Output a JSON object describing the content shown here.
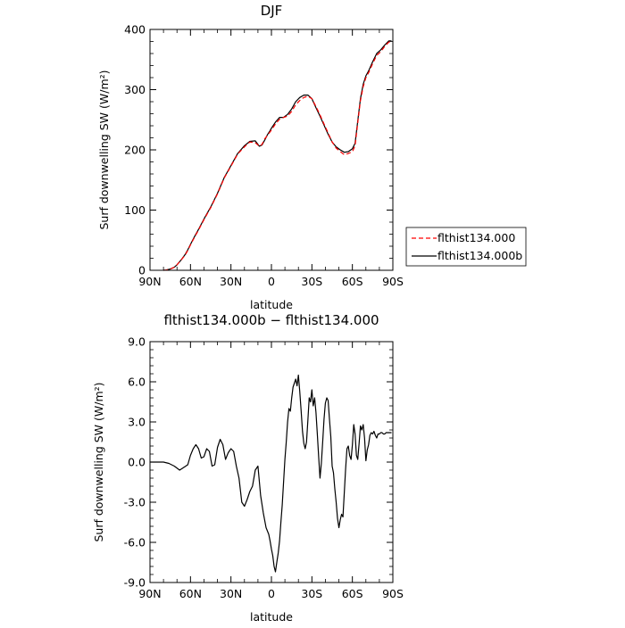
{
  "chart_data": [
    {
      "type": "line",
      "title": "DJF",
      "xlabel": "latitude",
      "ylabel": "Surf downwelling SW (W/m²)",
      "xlim": [
        90,
        -90
      ],
      "ylim": [
        0,
        400
      ],
      "x_tick_values": [
        90,
        60,
        30,
        0,
        -30,
        -60,
        -90
      ],
      "x_tick_labels": [
        "90N",
        "60N",
        "30N",
        "0",
        "30S",
        "60S",
        "90S"
      ],
      "y_tick_values": [
        0,
        100,
        200,
        300,
        400
      ],
      "y_tick_labels": [
        "0",
        "100",
        "200",
        "300",
        "400"
      ],
      "legend_position": "right",
      "series": [
        {
          "name": "flthist134.000",
          "color": "#ff0000",
          "dash": "dashed",
          "x": [
            80,
            78,
            75,
            72,
            70,
            67,
            64,
            62,
            60,
            57,
            54,
            50,
            45,
            40,
            35,
            30,
            25,
            20,
            16,
            12,
            9,
            7,
            5,
            3,
            1,
            0,
            -3,
            -6,
            -9,
            -12,
            -15,
            -18,
            -21,
            -24,
            -27,
            -30,
            -33,
            -36,
            -39,
            -42,
            -45,
            -48,
            -51,
            -54,
            -57,
            -60,
            -62,
            -64,
            -66,
            -68,
            -70,
            -72,
            -75,
            -78,
            -81,
            -84,
            -87,
            -89
          ],
          "y": [
            0,
            0.5,
            2,
            5,
            9,
            17,
            25,
            33,
            42,
            55,
            67,
            84,
            104,
            127,
            153,
            173,
            193,
            205,
            213,
            212,
            206,
            209,
            218,
            224,
            230,
            233,
            243,
            251,
            254,
            256,
            264,
            275,
            282,
            287,
            289,
            285,
            272,
            258,
            243,
            228,
            213,
            203,
            197,
            192,
            194,
            197,
            207,
            245,
            282,
            305,
            320,
            328,
            343,
            357,
            363,
            372,
            379,
            380
          ]
        },
        {
          "name": "flthist134.000b",
          "color": "#000000",
          "dash": "solid",
          "x": [
            80,
            78,
            75,
            72,
            70,
            67,
            64,
            62,
            60,
            57,
            54,
            50,
            45,
            40,
            35,
            30,
            25,
            20,
            16,
            12,
            9,
            7,
            5,
            3,
            1,
            0,
            -3,
            -6,
            -9,
            -12,
            -15,
            -18,
            -21,
            -24,
            -27,
            -30,
            -33,
            -36,
            -39,
            -42,
            -45,
            -48,
            -51,
            -54,
            -57,
            -60,
            -62,
            -64,
            -66,
            -68,
            -70,
            -72,
            -75,
            -78,
            -81,
            -84,
            -87,
            -89
          ],
          "y": [
            0,
            0.5,
            2,
            5,
            9,
            17,
            26,
            34,
            43,
            56,
            68,
            85,
            105,
            128,
            154,
            174,
            194,
            207,
            214,
            215,
            206,
            208,
            216,
            225,
            232,
            236,
            246,
            254,
            254,
            259,
            268,
            280,
            287,
            291,
            291,
            285,
            270,
            256,
            241,
            226,
            213,
            205,
            200,
            196,
            197,
            202,
            211,
            248,
            285,
            309,
            323,
            331,
            346,
            360,
            366,
            374,
            381,
            381
          ]
        }
      ]
    },
    {
      "type": "line",
      "title": "flthist134.000b − flthist134.000",
      "xlabel": "latitude",
      "ylabel": "Surf downwelling SW (W/m²)",
      "xlim": [
        90,
        -90
      ],
      "ylim": [
        -9,
        9
      ],
      "x_tick_values": [
        90,
        60,
        30,
        0,
        -30,
        -60,
        -90
      ],
      "x_tick_labels": [
        "90N",
        "60N",
        "30N",
        "0",
        "30S",
        "60S",
        "90S"
      ],
      "y_tick_values": [
        9,
        6,
        3,
        0,
        -3,
        -6,
        -9
      ],
      "y_tick_labels": [
        "9.0",
        "6.0",
        "3.0",
        "0.0",
        "-3.0",
        "-6.0",
        "-9.0"
      ],
      "series": [
        {
          "name": "flthist134.000b − flthist134.000",
          "color": "#000000",
          "x": [
            90,
            85,
            80,
            76,
            72,
            68,
            65,
            62,
            60,
            58,
            56,
            54,
            52,
            50,
            48,
            46,
            44,
            42,
            40,
            38,
            36,
            34,
            32,
            30,
            28,
            26,
            24,
            22,
            20,
            18,
            16,
            14,
            12,
            10,
            8,
            6,
            4,
            2,
            1,
            0,
            -1,
            -2,
            -3,
            -4,
            -5,
            -6,
            -7,
            -8,
            -9,
            -10,
            -11,
            -12,
            -13,
            -14,
            -15,
            -16,
            -17,
            -18,
            -19,
            -20,
            -21,
            -22,
            -23,
            -24,
            -25,
            -26,
            -27,
            -28,
            -29,
            -30,
            -31,
            -32,
            -33,
            -34,
            -35,
            -36,
            -37,
            -38,
            -39,
            -40,
            -41,
            -42,
            -43,
            -44,
            -45,
            -46,
            -47,
            -48,
            -49,
            -50,
            -51,
            -52,
            -53,
            -54,
            -55,
            -56,
            -57,
            -58,
            -59,
            -60,
            -61,
            -62,
            -63,
            -64,
            -65,
            -66,
            -67,
            -68,
            -69,
            -70,
            -71,
            -72,
            -73,
            -74,
            -75,
            -76,
            -77,
            -78,
            -79,
            -80,
            -81,
            -82,
            -83,
            -84,
            -85,
            -86,
            -87,
            -88,
            -89
          ],
          "y": [
            0,
            0,
            0,
            -0.1,
            -0.3,
            -0.6,
            -0.4,
            -0.2,
            0.5,
            1.0,
            1.3,
            1.0,
            0.3,
            0.4,
            1.0,
            0.8,
            -0.3,
            -0.2,
            1.1,
            1.7,
            1.3,
            0.2,
            0.7,
            1.0,
            0.8,
            -0.3,
            -1.2,
            -3.0,
            -3.3,
            -2.8,
            -2.2,
            -1.8,
            -0.6,
            -0.3,
            -2.5,
            -3.8,
            -4.9,
            -5.4,
            -5.9,
            -6.5,
            -7.0,
            -7.8,
            -8.2,
            -7.5,
            -6.8,
            -5.9,
            -4.5,
            -3.2,
            -1.5,
            0.2,
            1.5,
            3.0,
            4.0,
            3.8,
            4.8,
            5.6,
            5.9,
            6.2,
            5.7,
            6.5,
            5.3,
            3.9,
            2.3,
            1.4,
            1.0,
            1.5,
            3.1,
            4.8,
            4.5,
            5.4,
            4.2,
            4.8,
            3.7,
            2.1,
            0.4,
            -1.2,
            -0.1,
            1.5,
            3.2,
            4.4,
            4.8,
            4.6,
            3.2,
            1.9,
            -0.3,
            -0.8,
            -2.0,
            -3.0,
            -4.2,
            -4.9,
            -4.3,
            -3.9,
            -4.1,
            -2.3,
            -0.5,
            1.0,
            1.2,
            0.5,
            0.2,
            1.3,
            2.8,
            2.1,
            0.5,
            0.2,
            1.4,
            2.7,
            2.4,
            2.8,
            1.8,
            0.1,
            0.9,
            1.3,
            2.0,
            2.2,
            2.1,
            2.3,
            2.0,
            1.8,
            2.1,
            2.1,
            2.2,
            2.2,
            2.1,
            2.1,
            2.2,
            2.2,
            2.2,
            2.2,
            2.2
          ]
        }
      ]
    }
  ]
}
